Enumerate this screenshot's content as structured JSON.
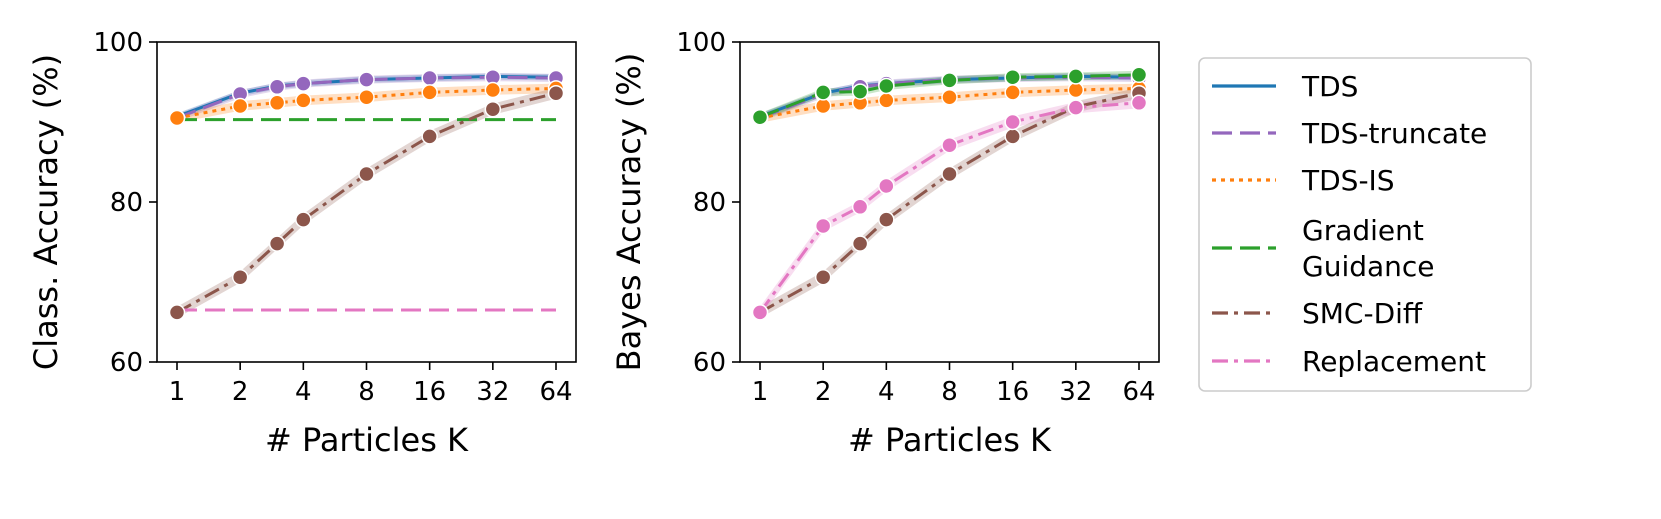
{
  "colors": {
    "tds": "#1f77b4",
    "tds_truncate": "#9467bd",
    "tds_is": "#ff7f0e",
    "gradient_guidance": "#2ca02c",
    "smc_diff": "#8c564b",
    "replacement": "#e377c2"
  },
  "legend": {
    "placement": "right, outside plots",
    "entries": [
      {
        "key": "tds",
        "label_lines": [
          "TDS"
        ],
        "dash": "solid"
      },
      {
        "key": "tds_truncate",
        "label_lines": [
          "TDS-truncate"
        ],
        "dash": "dashed"
      },
      {
        "key": "tds_is",
        "label_lines": [
          "TDS-IS"
        ],
        "dash": "dotted"
      },
      {
        "key": "gradient_guidance",
        "label_lines": [
          "Gradient",
          "Guidance"
        ],
        "dash": "dashed"
      },
      {
        "key": "smc_diff",
        "label_lines": [
          "SMC-Diff"
        ],
        "dash": "dashdot"
      },
      {
        "key": "replacement",
        "label_lines": [
          "Replacement"
        ],
        "dash": "dashdot"
      }
    ]
  },
  "chart_data": [
    {
      "type": "line",
      "title": "",
      "xlabel": "# Particles K",
      "ylabel": "Class. Accuracy (%)",
      "x_scale": "log2",
      "x_ticks": [
        1,
        2,
        4,
        8,
        16,
        32,
        64
      ],
      "x_tick_labels": [
        "1",
        "2",
        "4",
        "8",
        "16",
        "32",
        "64"
      ],
      "xlim": [
        1,
        64
      ],
      "y_ticks": [
        60,
        80,
        100
      ],
      "y_tick_labels": [
        "60",
        "80",
        "100"
      ],
      "ylim": [
        60,
        100
      ],
      "grid": false,
      "series": [
        {
          "name": "TDS",
          "key": "tds",
          "dash": "solid",
          "markers": false,
          "band": 0.4,
          "x": [
            1,
            2,
            3,
            4,
            8,
            16,
            32,
            64
          ],
          "y": [
            90.7,
            93.6,
            94.5,
            94.8,
            95.3,
            95.5,
            95.7,
            95.6
          ]
        },
        {
          "name": "TDS-truncate",
          "key": "tds_truncate",
          "dash": "dashed",
          "markers": true,
          "band": 0.5,
          "x": [
            1,
            2,
            3,
            4,
            8,
            16,
            32,
            64
          ],
          "y": [
            90.5,
            93.5,
            94.4,
            94.8,
            95.3,
            95.5,
            95.6,
            95.5
          ]
        },
        {
          "name": "TDS-IS",
          "key": "tds_is",
          "dash": "dotted",
          "markers": true,
          "band": 0.6,
          "x": [
            1,
            2,
            3,
            4,
            8,
            16,
            32,
            64
          ],
          "y": [
            90.5,
            92.0,
            92.4,
            92.7,
            93.1,
            93.7,
            94.0,
            94.2
          ]
        },
        {
          "name": "Gradient Guidance",
          "key": "gradient_guidance",
          "dash": "dashed",
          "markers": false,
          "band": 0,
          "x": [
            1,
            64
          ],
          "y": [
            90.3,
            90.3
          ]
        },
        {
          "name": "SMC-Diff",
          "key": "smc_diff",
          "dash": "dashdot",
          "markers": true,
          "band": 0.7,
          "x": [
            1,
            2,
            3,
            4,
            8,
            16,
            32,
            64
          ],
          "y": [
            66.2,
            70.6,
            74.8,
            77.8,
            83.5,
            88.2,
            91.6,
            93.6
          ]
        },
        {
          "name": "Replacement",
          "key": "replacement",
          "dash": "dashed",
          "markers": false,
          "band": 0,
          "x": [
            1,
            64
          ],
          "y": [
            66.5,
            66.5
          ]
        }
      ]
    },
    {
      "type": "line",
      "title": "",
      "xlabel": "# Particles K",
      "ylabel": "Bayes Accuracy (%)",
      "x_scale": "log2",
      "x_ticks": [
        1,
        2,
        4,
        8,
        16,
        32,
        64
      ],
      "x_tick_labels": [
        "1",
        "2",
        "4",
        "8",
        "16",
        "32",
        "64"
      ],
      "xlim": [
        1,
        64
      ],
      "y_ticks": [
        60,
        80,
        100
      ],
      "y_tick_labels": [
        "60",
        "80",
        "100"
      ],
      "ylim": [
        60,
        100
      ],
      "grid": false,
      "series": [
        {
          "name": "TDS",
          "key": "tds",
          "dash": "solid",
          "markers": false,
          "band": 0.4,
          "x": [
            1,
            2,
            3,
            4,
            8,
            16,
            32,
            64
          ],
          "y": [
            90.7,
            93.6,
            94.5,
            94.8,
            95.3,
            95.5,
            95.7,
            95.6
          ]
        },
        {
          "name": "TDS-truncate",
          "key": "tds_truncate",
          "dash": "dashed",
          "markers": true,
          "band": 0.5,
          "x": [
            1,
            2,
            3,
            4,
            8,
            16,
            32,
            64
          ],
          "y": [
            90.5,
            93.5,
            94.4,
            94.8,
            95.3,
            95.5,
            95.6,
            95.5
          ]
        },
        {
          "name": "TDS-IS",
          "key": "tds_is",
          "dash": "dotted",
          "markers": true,
          "band": 0.6,
          "x": [
            1,
            2,
            3,
            4,
            8,
            16,
            32,
            64
          ],
          "y": [
            90.5,
            92.0,
            92.4,
            92.7,
            93.1,
            93.7,
            94.0,
            94.2
          ]
        },
        {
          "name": "Gradient Guidance",
          "key": "gradient_guidance",
          "dash": "dashed",
          "markers": true,
          "band": 0.5,
          "x": [
            1,
            2,
            3,
            4,
            8,
            16,
            32,
            64
          ],
          "y": [
            90.6,
            93.7,
            93.8,
            94.5,
            95.2,
            95.6,
            95.7,
            95.9
          ]
        },
        {
          "name": "SMC-Diff",
          "key": "smc_diff",
          "dash": "dashdot",
          "markers": true,
          "band": 0.7,
          "x": [
            1,
            2,
            3,
            4,
            8,
            16,
            32,
            64
          ],
          "y": [
            66.2,
            70.6,
            74.8,
            77.8,
            83.5,
            88.2,
            91.9,
            93.6
          ]
        },
        {
          "name": "Replacement",
          "key": "replacement",
          "dash": "dashdot",
          "markers": true,
          "band": 0.7,
          "x": [
            1,
            2,
            3,
            4,
            8,
            16,
            32,
            64
          ],
          "y": [
            66.2,
            77.0,
            79.4,
            82.0,
            87.1,
            90.0,
            91.8,
            92.4
          ]
        }
      ]
    }
  ]
}
